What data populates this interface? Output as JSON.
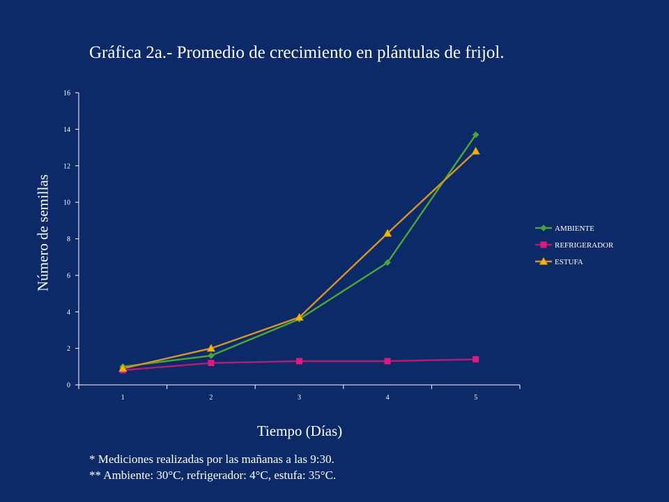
{
  "chart_data": {
    "type": "line",
    "title": "Gráfica 2a.- Promedio de crecimiento en plántulas  de frijol.",
    "xlabel": "Tiempo (Días)",
    "ylabel": "Número de semillas",
    "categories": [
      "1",
      "2",
      "3",
      "4",
      "5"
    ],
    "ylim": [
      0,
      16
    ],
    "yticks": [
      "0",
      "2",
      "4",
      "6",
      "8",
      "10",
      "12",
      "14",
      "16"
    ],
    "grid": false,
    "legend_position": "right",
    "series": [
      {
        "name": "AMBIENTE",
        "values": [
          1.0,
          1.6,
          3.6,
          6.7,
          13.7
        ],
        "color": "#4ca337",
        "marker": "diamond"
      },
      {
        "name": "REFRIGERADOR",
        "values": [
          0.8,
          1.2,
          1.3,
          1.3,
          1.4
        ],
        "color": "#b01d6e",
        "marker": "square"
      },
      {
        "name": "ESTUFA",
        "values": [
          0.9,
          2.0,
          3.7,
          8.3,
          12.8
        ],
        "color": "#d4932a",
        "marker": "triangle"
      }
    ]
  },
  "notes": {
    "line1": "* Mediciones realizadas por las mañanas a las 9:30.",
    "line2": "** Ambiente: 30°C, refrigerador: 4°C, estufa: 35°C."
  }
}
